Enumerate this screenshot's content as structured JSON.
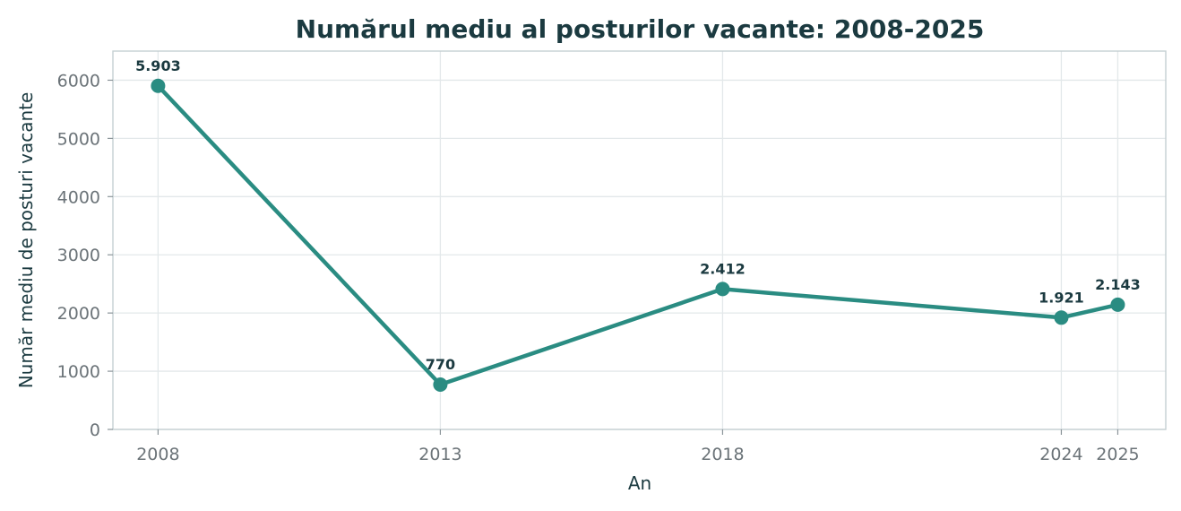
{
  "chart_data": {
    "type": "line",
    "title": "Numărul mediu al posturilor vacante: 2008-2025",
    "xlabel": "An",
    "ylabel": "Număr mediu de posturi vacante",
    "x": [
      2008,
      2013,
      2018,
      2024,
      2025
    ],
    "x_tick_labels": [
      "2008",
      "2013",
      "2018",
      "2024",
      "2025"
    ],
    "series": [
      {
        "values": [
          5903,
          770,
          2412,
          1921,
          2143
        ],
        "data_labels": [
          "5.903",
          "770",
          "2.412",
          "1.921",
          "2.143"
        ],
        "color": "#2a8c82"
      }
    ],
    "xlim": [
      2007.2,
      2025.85
    ],
    "ylim": [
      0,
      6500
    ],
    "y_ticks": [
      0,
      1000,
      2000,
      3000,
      4000,
      5000,
      6000
    ],
    "y_tick_labels": [
      "0",
      "1000",
      "2000",
      "3000",
      "4000",
      "5000",
      "6000"
    ],
    "grid": true,
    "legend": "none"
  }
}
